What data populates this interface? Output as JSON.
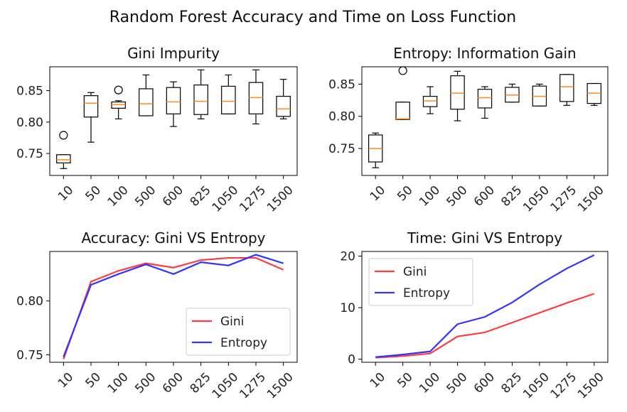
{
  "suptitle": "Random Forest Accuracy and Time on Loss Function",
  "chart_data": [
    {
      "type": "boxplot",
      "title": "Gini Impurity",
      "categories": [
        "10",
        "50",
        "100",
        "500",
        "600",
        "825",
        "1050",
        "1275",
        "1500"
      ],
      "ylim": [
        0.715,
        0.888
      ],
      "yticks": [
        0.75,
        0.8,
        0.85
      ],
      "ytick_labels": [
        "0.75",
        "0.80",
        "0.85"
      ],
      "boxes": [
        {
          "whislo": 0.726,
          "q1": 0.735,
          "med": 0.74,
          "q3": 0.748,
          "whishi": 0.748,
          "fliers": [
            0.779
          ]
        },
        {
          "whislo": 0.768,
          "q1": 0.808,
          "med": 0.83,
          "q3": 0.842,
          "whishi": 0.847,
          "fliers": []
        },
        {
          "whislo": 0.805,
          "q1": 0.822,
          "med": 0.828,
          "q3": 0.832,
          "whishi": 0.834,
          "fliers": [
            0.851
          ]
        },
        {
          "whislo": 0.81,
          "q1": 0.81,
          "med": 0.829,
          "q3": 0.853,
          "whishi": 0.875,
          "fliers": []
        },
        {
          "whislo": 0.793,
          "q1": 0.813,
          "med": 0.832,
          "q3": 0.855,
          "whishi": 0.864,
          "fliers": []
        },
        {
          "whislo": 0.805,
          "q1": 0.812,
          "med": 0.833,
          "q3": 0.859,
          "whishi": 0.883,
          "fliers": []
        },
        {
          "whislo": 0.813,
          "q1": 0.813,
          "med": 0.833,
          "q3": 0.857,
          "whishi": 0.875,
          "fliers": []
        },
        {
          "whislo": 0.797,
          "q1": 0.813,
          "med": 0.839,
          "q3": 0.863,
          "whishi": 0.883,
          "fliers": []
        },
        {
          "whislo": 0.805,
          "q1": 0.809,
          "med": 0.821,
          "q3": 0.841,
          "whishi": 0.868,
          "fliers": []
        }
      ]
    },
    {
      "type": "boxplot",
      "title": "Entropy: Information Gain",
      "categories": [
        "10",
        "50",
        "100",
        "500",
        "600",
        "825",
        "1050",
        "1275",
        "1500"
      ],
      "ylim": [
        0.708,
        0.877
      ],
      "yticks": [
        0.75,
        0.8,
        0.85
      ],
      "ytick_labels": [
        "0.75",
        "0.80",
        "0.85"
      ],
      "boxes": [
        {
          "whislo": 0.72,
          "q1": 0.729,
          "med": 0.75,
          "q3": 0.771,
          "whishi": 0.774,
          "fliers": []
        },
        {
          "whislo": 0.795,
          "q1": 0.795,
          "med": 0.796,
          "q3": 0.822,
          "whishi": 0.822,
          "fliers": [
            0.871
          ]
        },
        {
          "whislo": 0.804,
          "q1": 0.815,
          "med": 0.824,
          "q3": 0.831,
          "whishi": 0.846,
          "fliers": []
        },
        {
          "whislo": 0.793,
          "q1": 0.811,
          "med": 0.836,
          "q3": 0.863,
          "whishi": 0.87,
          "fliers": []
        },
        {
          "whislo": 0.797,
          "q1": 0.813,
          "med": 0.829,
          "q3": 0.842,
          "whishi": 0.846,
          "fliers": []
        },
        {
          "whislo": 0.822,
          "q1": 0.822,
          "med": 0.833,
          "q3": 0.845,
          "whishi": 0.85,
          "fliers": []
        },
        {
          "whislo": 0.816,
          "q1": 0.816,
          "med": 0.831,
          "q3": 0.847,
          "whishi": 0.85,
          "fliers": []
        },
        {
          "whislo": 0.817,
          "q1": 0.823,
          "med": 0.846,
          "q3": 0.865,
          "whishi": 0.865,
          "fliers": []
        },
        {
          "whislo": 0.817,
          "q1": 0.82,
          "med": 0.836,
          "q3": 0.851,
          "whishi": 0.851,
          "fliers": []
        }
      ]
    },
    {
      "type": "line",
      "title": "Accuracy: Gini VS Entropy",
      "categories": [
        "10",
        "50",
        "100",
        "500",
        "600",
        "825",
        "1050",
        "1275",
        "1500"
      ],
      "ylim": [
        0.743,
        0.846
      ],
      "yticks": [
        0.75,
        0.8
      ],
      "ytick_labels": [
        "0.75",
        "0.80"
      ],
      "legend": "lower right",
      "series": [
        {
          "name": "Gini",
          "color": "#ff3b3b",
          "values": [
            0.746,
            0.818,
            0.828,
            0.835,
            0.831,
            0.838,
            0.84,
            0.84,
            0.829
          ]
        },
        {
          "name": "Entropy",
          "color": "#3333ff",
          "values": [
            0.748,
            0.815,
            0.825,
            0.834,
            0.825,
            0.836,
            0.833,
            0.843,
            0.835
          ]
        }
      ]
    },
    {
      "type": "line",
      "title": "Time: Gini VS Entropy",
      "categories": [
        "10",
        "50",
        "100",
        "500",
        "600",
        "825",
        "1050",
        "1275",
        "1500"
      ],
      "ylim": [
        -0.6,
        20.9
      ],
      "yticks": [
        0,
        10,
        20
      ],
      "ytick_labels": [
        "0",
        "10",
        "20"
      ],
      "legend": "upper left",
      "series": [
        {
          "name": "Gini",
          "color": "#ff3b3b",
          "values": [
            0.3,
            0.6,
            1.1,
            4.4,
            5.2,
            7.1,
            9.0,
            10.9,
            12.7
          ]
        },
        {
          "name": "Entropy",
          "color": "#3333ff",
          "values": [
            0.4,
            0.9,
            1.5,
            6.8,
            8.2,
            11.0,
            14.5,
            17.6,
            20.2
          ]
        }
      ]
    }
  ]
}
